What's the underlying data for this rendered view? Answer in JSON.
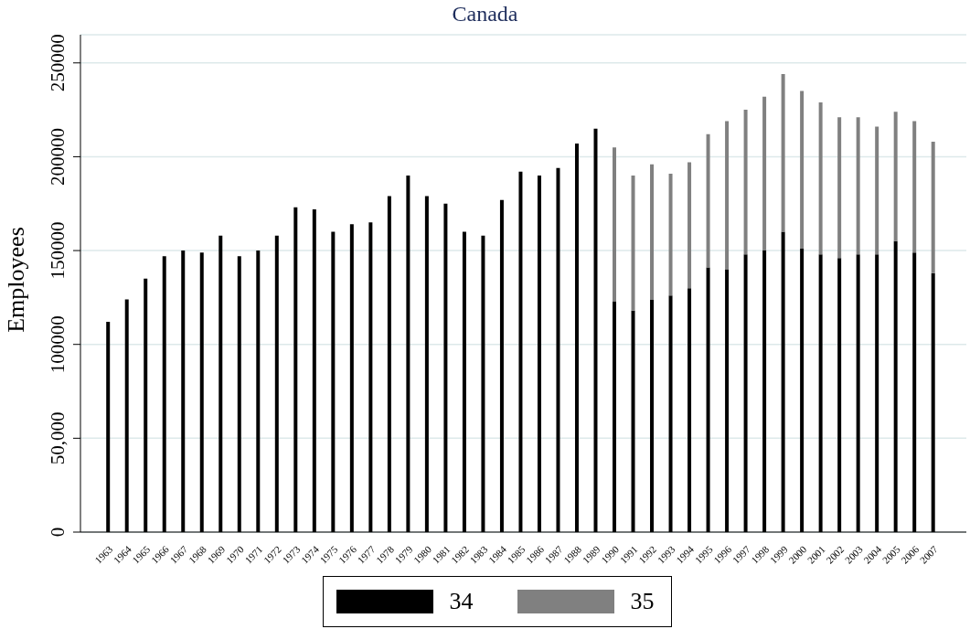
{
  "chart_data": {
    "type": "bar",
    "title": "Canada",
    "ylabel": "Employees",
    "stacked": true,
    "categories": [
      "1963",
      "1964",
      "1965",
      "1966",
      "1967",
      "1968",
      "1969",
      "1970",
      "1971",
      "1972",
      "1973",
      "1974",
      "1975",
      "1976",
      "1977",
      "1978",
      "1979",
      "1980",
      "1981",
      "1982",
      "1983",
      "1984",
      "1985",
      "1986",
      "1987",
      "1988",
      "1989",
      "1990",
      "1991",
      "1992",
      "1993",
      "1994",
      "1995",
      "1996",
      "1997",
      "1998",
      "1999",
      "2000",
      "2001",
      "2002",
      "2003",
      "2004",
      "2005",
      "2006",
      "2007"
    ],
    "series": [
      {
        "name": "34",
        "color": "#000000",
        "values": [
          112000,
          124000,
          135000,
          147000,
          150000,
          149000,
          158000,
          147000,
          150000,
          158000,
          173000,
          172000,
          160000,
          164000,
          165000,
          179000,
          190000,
          179000,
          175000,
          160000,
          158000,
          177000,
          192000,
          190000,
          194000,
          207000,
          215000,
          123000,
          118000,
          124000,
          126000,
          130000,
          141000,
          140000,
          148000,
          150000,
          160000,
          151000,
          148000,
          146000,
          148000,
          148000,
          155000,
          149000,
          138000
        ]
      },
      {
        "name": "35",
        "color": "#808080",
        "values": [
          null,
          null,
          null,
          null,
          null,
          null,
          null,
          null,
          null,
          null,
          null,
          null,
          null,
          null,
          null,
          null,
          null,
          null,
          null,
          null,
          null,
          null,
          null,
          null,
          null,
          null,
          null,
          82000,
          72000,
          72000,
          65000,
          67000,
          71000,
          79000,
          77000,
          82000,
          84000,
          84000,
          81000,
          75000,
          73000,
          68000,
          69000,
          70000,
          70000
        ]
      }
    ],
    "ylim": [
      0,
      265000
    ],
    "yticks": [
      0,
      {
        "value": 50000,
        "label": "50,000"
      },
      100000,
      150000,
      200000,
      250000
    ],
    "grid": "y",
    "legend": "bottom"
  }
}
